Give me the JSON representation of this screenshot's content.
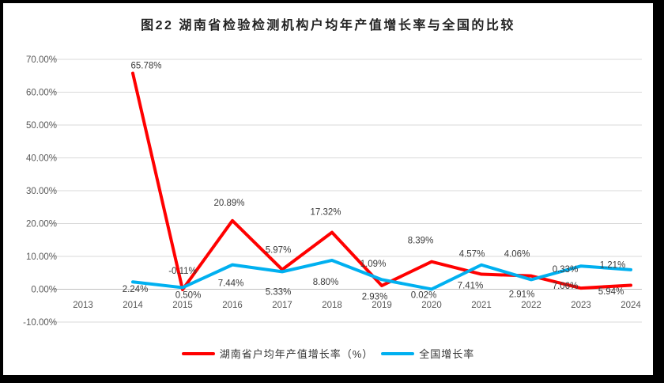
{
  "title": "图22 湖南省检验检测机构户均年产值增长率与全国的比较",
  "colors": {
    "hunan_line": "#FF0000",
    "national_line": "#00B0F0",
    "gridline": "#D9D9D9",
    "zero_axis": "#BFBFBF",
    "axis_text": "#595959",
    "data_label_text": "#3b3b3b",
    "border": "#000000",
    "background": "#ffffff"
  },
  "chart_data": {
    "type": "line",
    "title": "图22 湖南省检验检测机构户均年产值增长率与全国的比较",
    "categories": [
      "2013",
      "2014",
      "2015",
      "2016",
      "2017",
      "2018",
      "2019",
      "2020",
      "2021",
      "2022",
      "2023",
      "2024"
    ],
    "series": [
      {
        "name": "湖南省户均年产值增长率（%）",
        "color": "#FF0000",
        "label_position": "above",
        "values": [
          null,
          65.78,
          -0.11,
          20.89,
          5.97,
          17.32,
          1.09,
          8.39,
          4.57,
          4.06,
          0.33,
          1.21
        ],
        "labels": [
          "",
          "65.78%",
          "-0.11%",
          "20.89%",
          "5.97%",
          "17.32%",
          "1.09%",
          "8.39%",
          "4.57%",
          "4.06%",
          "0.33%",
          "1.21%"
        ]
      },
      {
        "name": "全国增长率",
        "color": "#00B0F0",
        "label_position": "below",
        "values": [
          null,
          2.24,
          0.5,
          7.44,
          5.33,
          8.8,
          2.93,
          0.02,
          7.41,
          2.91,
          7.06,
          5.94
        ],
        "labels": [
          "",
          "2.24%",
          "0.50%",
          "7.44%",
          "5.33%",
          "8.80%",
          "2.93%",
          "0.02%",
          "7.41%",
          "2.91%",
          "7.06%",
          "5.94%"
        ]
      }
    ],
    "y_axis": {
      "min": -10,
      "max": 70,
      "step": 10,
      "ticks": [
        "70.00%",
        "60.00%",
        "50.00%",
        "40.00%",
        "30.00%",
        "20.00%",
        "10.00%",
        "0.00%",
        "-10.00%"
      ]
    },
    "x_axis": {
      "label": ""
    },
    "grid": true,
    "legend_position": "bottom"
  }
}
